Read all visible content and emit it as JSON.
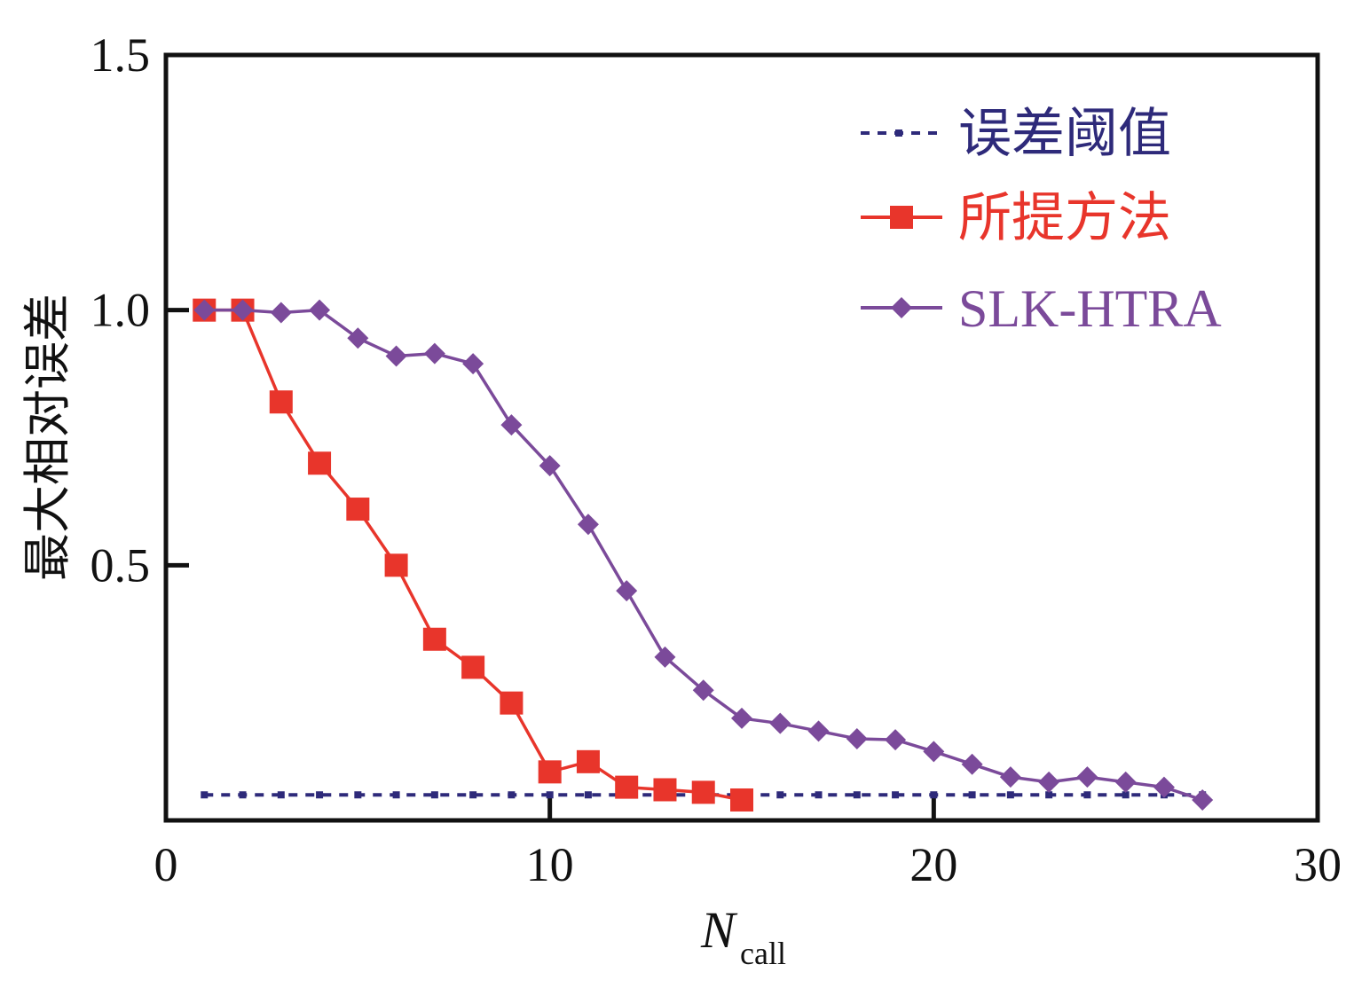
{
  "chart_data": {
    "type": "line",
    "title": "",
    "xlabel": "N",
    "xlabel_subscript": "call",
    "ylabel": "最大相对误差",
    "xlim": [
      0,
      30
    ],
    "ylim": [
      0,
      1.5
    ],
    "xticks": [
      0,
      10,
      20,
      30
    ],
    "xtick_labels": [
      "0",
      "10",
      "20",
      "30"
    ],
    "yticks": [
      0.5,
      1.0,
      1.5
    ],
    "ytick_labels": [
      "0.5",
      "1.0",
      "1.5"
    ],
    "grid": false,
    "legend_position": "top-right",
    "series": [
      {
        "name": "误差阈值",
        "color": "#2e2a7a",
        "style": "dashed",
        "marker": "small-square",
        "x": [
          1,
          2,
          3,
          4,
          5,
          6,
          7,
          8,
          9,
          10,
          11,
          12,
          13,
          14,
          15,
          16,
          17,
          18,
          19,
          20,
          21,
          22,
          23,
          24,
          25,
          26,
          27
        ],
        "y": [
          0.05,
          0.05,
          0.05,
          0.05,
          0.05,
          0.05,
          0.05,
          0.05,
          0.05,
          0.05,
          0.05,
          0.05,
          0.05,
          0.05,
          0.05,
          0.05,
          0.05,
          0.05,
          0.05,
          0.05,
          0.05,
          0.05,
          0.05,
          0.05,
          0.05,
          0.05,
          0.05
        ]
      },
      {
        "name": "所提方法",
        "color": "#e8352b",
        "style": "solid",
        "marker": "square",
        "x": [
          1,
          2,
          3,
          4,
          5,
          6,
          7,
          8,
          9,
          10,
          11,
          12,
          13,
          14,
          15
        ],
        "y": [
          1.0,
          1.0,
          0.82,
          0.7,
          0.61,
          0.5,
          0.355,
          0.3,
          0.23,
          0.095,
          0.115,
          0.065,
          0.06,
          0.055,
          0.04
        ]
      },
      {
        "name": "SLK-HTRA",
        "color": "#7b4a9a",
        "style": "solid",
        "marker": "diamond",
        "x": [
          1,
          2,
          3,
          4,
          5,
          6,
          7,
          8,
          9,
          10,
          11,
          12,
          13,
          14,
          15,
          16,
          17,
          18,
          19,
          20,
          21,
          22,
          23,
          24,
          25,
          26,
          27
        ],
        "y": [
          1.0,
          1.0,
          0.995,
          1.0,
          0.945,
          0.91,
          0.915,
          0.895,
          0.775,
          0.695,
          0.58,
          0.45,
          0.32,
          0.255,
          0.2,
          0.19,
          0.175,
          0.16,
          0.158,
          0.135,
          0.11,
          0.085,
          0.075,
          0.085,
          0.075,
          0.065,
          0.04
        ]
      }
    ]
  }
}
